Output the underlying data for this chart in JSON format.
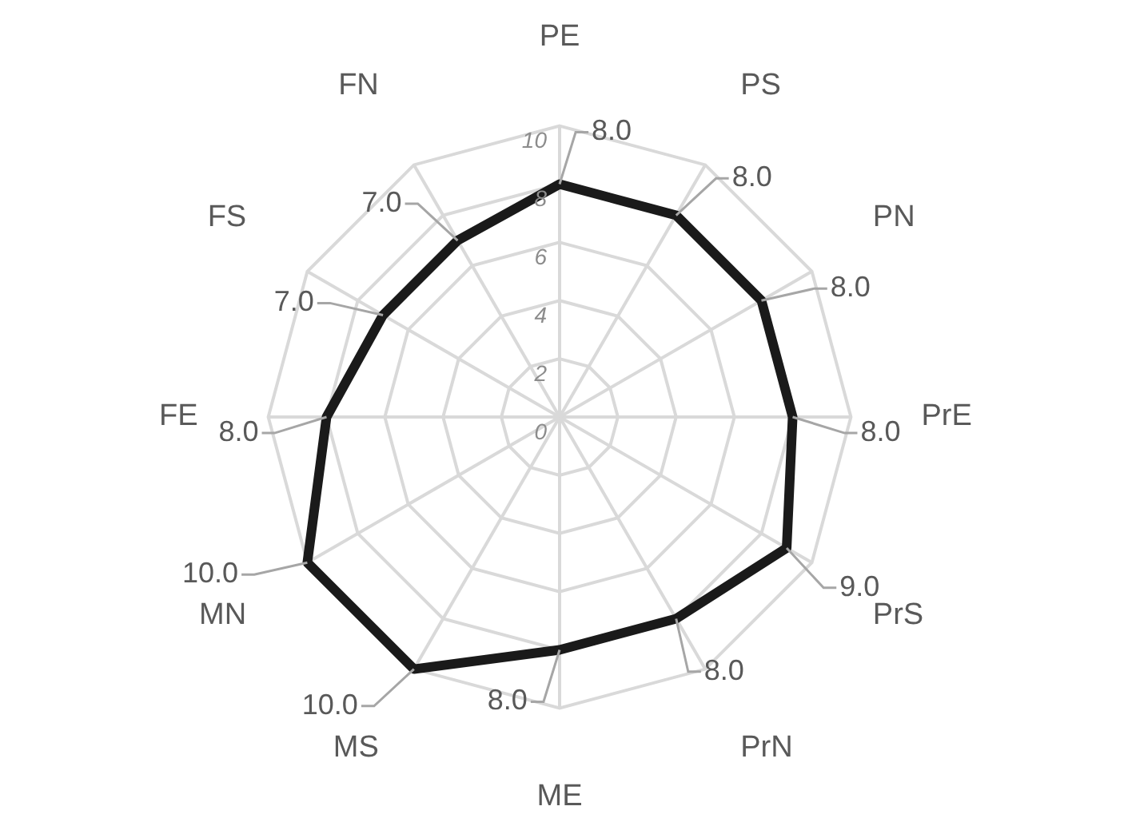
{
  "chart_data": {
    "type": "radar",
    "categories": [
      "PE",
      "PS",
      "PN",
      "PrE",
      "PrS",
      "PrN",
      "ME",
      "MS",
      "MN",
      "FE",
      "FS",
      "FN"
    ],
    "series": [
      {
        "color": "#1a1a1a",
        "values": [
          8,
          8,
          8,
          8,
          9,
          8,
          8,
          10,
          10,
          8,
          7,
          7
        ],
        "value_labels": [
          "8.0",
          "8.0",
          "8.0",
          "8.0",
          "9.0",
          "8.0",
          "8.0",
          "10.0",
          "10.0",
          "8.0",
          "7.0",
          "7.0"
        ]
      }
    ],
    "ylim": [
      0,
      10
    ],
    "yticks": [
      0,
      2,
      4,
      6,
      8,
      10
    ],
    "grid": true,
    "legend": false,
    "marker": "none",
    "line_style": "solid"
  }
}
